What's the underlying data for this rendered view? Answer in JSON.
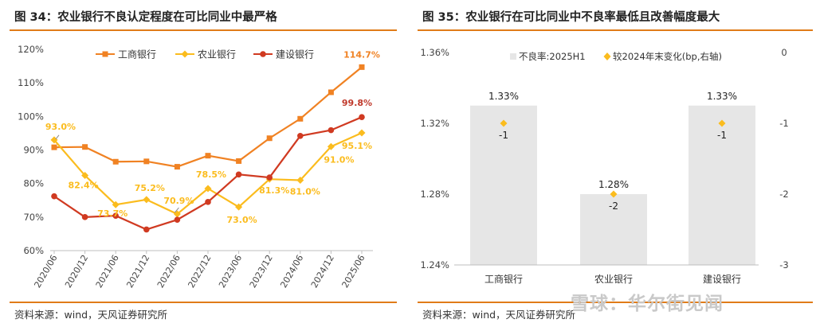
{
  "left_panel": {
    "title": "图 34：农业银行不良认定程度在可比同业中最严格",
    "source": "资料来源：wind，天风证券研究所"
  },
  "right_panel": {
    "title": "图 35：农业银行在可比同业中不良率最低且改善幅度最大",
    "source": "资料来源：wind，天风证券研究所"
  },
  "watermark": "雪球：华尔街见闻",
  "chart_data": [
    {
      "type": "line",
      "title": "图 34：农业银行不良认定程度在可比同业中最严格",
      "categories": [
        "2020/06",
        "2020/12",
        "2021/06",
        "2021/12",
        "2022/06",
        "2022/12",
        "2023/06",
        "2023/12",
        "2024/06",
        "2024/12",
        "2025/06"
      ],
      "y_ticks": [
        "60%",
        "70%",
        "80%",
        "90%",
        "100%",
        "110%",
        "120%"
      ],
      "ylim": [
        60,
        120
      ],
      "grid": false,
      "legend": "top",
      "series": [
        {
          "name": "工商银行",
          "color": "#f08223",
          "marker": "square",
          "values": [
            90.8,
            90.9,
            86.5,
            86.6,
            85.0,
            88.3,
            86.7,
            93.5,
            99.3,
            107.2,
            114.7
          ],
          "labels": [
            null,
            null,
            null,
            null,
            null,
            null,
            null,
            null,
            null,
            null,
            "114.7%"
          ]
        },
        {
          "name": "农业银行",
          "color": "#fbbc1e",
          "marker": "diamond",
          "values": [
            93.0,
            82.4,
            73.7,
            75.2,
            70.9,
            78.5,
            73.0,
            81.3,
            81.0,
            91.0,
            95.1
          ],
          "labels": [
            "93.0%",
            "82.4%",
            "73.7%",
            "75.2%",
            "70.9%",
            "78.5%",
            "73.0%",
            "81.3%",
            "81.0%",
            "91.0%",
            "95.1%"
          ]
        },
        {
          "name": "建设银行",
          "color": "#d03a21",
          "marker": "circle",
          "values": [
            76.2,
            70.0,
            70.4,
            66.3,
            69.2,
            74.5,
            82.7,
            81.8,
            94.2,
            95.9,
            99.8
          ],
          "labels": [
            null,
            null,
            null,
            null,
            null,
            null,
            null,
            null,
            null,
            null,
            "99.8%"
          ]
        }
      ]
    },
    {
      "type": "bar",
      "title": "图 35：农业银行在可比同业中不良率最低且改善幅度最大",
      "categories": [
        "工商银行",
        "农业银行",
        "建设银行"
      ],
      "series": [
        {
          "name": "不良率:2025H1",
          "axis": "left",
          "color": "#e6e6e6",
          "values": [
            1.33,
            1.28,
            1.33
          ],
          "labels": [
            "1.33%",
            "1.28%",
            "1.33%"
          ]
        },
        {
          "name": "较2024年末变化(bp,右轴)",
          "axis": "right",
          "type": "scatter",
          "color": "#fbbc1e",
          "values": [
            -1,
            -2,
            -1
          ],
          "labels": [
            "-1",
            "-2",
            "-1"
          ]
        }
      ],
      "left_axis": {
        "min": 1.24,
        "max": 1.36,
        "ticks": [
          "1.24%",
          "1.28%",
          "1.32%",
          "1.36%"
        ]
      },
      "right_axis": {
        "min": -3,
        "max": 0,
        "ticks": [
          "-3",
          "-2",
          "-1",
          "0"
        ]
      },
      "legend": "top"
    }
  ]
}
